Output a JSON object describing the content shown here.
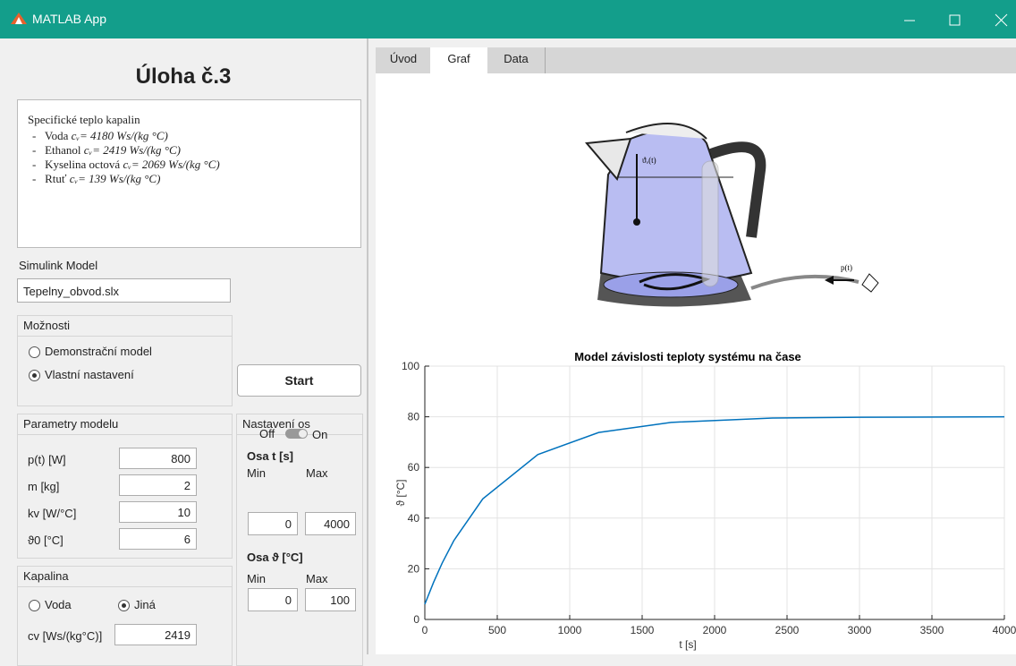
{
  "window": {
    "title": "MATLAB App"
  },
  "left": {
    "heading": "Úloha č.3",
    "info": {
      "title": "Specifické teplo kapalin",
      "items": [
        {
          "name": "Voda",
          "formula": "cᵥ= 4180 Ws/(kg °C)"
        },
        {
          "name": "Ethanol",
          "formula": "cᵥ= 2419 Ws/(kg °C)"
        },
        {
          "name": "Kyselina octová",
          "formula": "cᵥ= 2069 Ws/(kg °C)"
        },
        {
          "name": "Rtuť",
          "formula": "cᵥ= 139 Ws/(kg °C)"
        }
      ]
    },
    "model": {
      "label": "Simulink Model",
      "value": "Tepelny_obvod.slx"
    },
    "options": {
      "title": "Možnosti",
      "choices": [
        "Demonstrační model",
        "Vlastní nastavení"
      ],
      "selected": 1
    },
    "start": "Start",
    "params": {
      "title": "Parametry modelu",
      "rows": [
        {
          "label": "p(t) [W]",
          "value": 800
        },
        {
          "label": "m [kg]",
          "value": 2
        },
        {
          "label": "kv [W/°C]",
          "value": 10
        },
        {
          "label": "ϑ0 [°C]",
          "value": 6
        }
      ]
    },
    "axes": {
      "title": "Nastavení os",
      "off": "Off",
      "on": "On",
      "switch_on": true,
      "t": {
        "title": "Osa t [s]",
        "min_label": "Min",
        "max_label": "Max",
        "min": 0,
        "max": 4000
      },
      "y": {
        "title": "Osa ϑ [°C]",
        "min_label": "Min",
        "max_label": "Max",
        "min": 0,
        "max": 100
      }
    },
    "liquid": {
      "title": "Kapalina",
      "choices": [
        "Voda",
        "Jiná"
      ],
      "selected": 1,
      "cv_label": "cv [Ws/(kg°C)]",
      "cv": 2419
    }
  },
  "tabs": {
    "items": [
      "Úvod",
      "Graf",
      "Data"
    ],
    "selected": 1
  },
  "image": {
    "temp_label": "ϑᵥ(t)",
    "power_label": "p(t)"
  },
  "chart_data": {
    "type": "line",
    "title": "Model závislosti teploty systému na čase",
    "xlabel": "t [s]",
    "ylabel": "ϑ [°C]",
    "x": [
      0,
      60,
      120,
      200,
      400,
      780,
      1200,
      1700,
      2400,
      3000,
      4000
    ],
    "series": [
      {
        "name": "ϑ",
        "color": "#0072bd",
        "values": [
          6,
          14.6,
          22.3,
          31.1,
          47.6,
          65.1,
          73.8,
          77.8,
          79.5,
          79.8,
          80
        ]
      }
    ],
    "xlim": [
      0,
      4000
    ],
    "xticks": [
      0,
      500,
      1000,
      1500,
      2000,
      2500,
      3000,
      3500,
      4000
    ],
    "ylim": [
      0,
      100
    ],
    "yticks": [
      0,
      20,
      40,
      60,
      80,
      100
    ],
    "grid": true
  }
}
